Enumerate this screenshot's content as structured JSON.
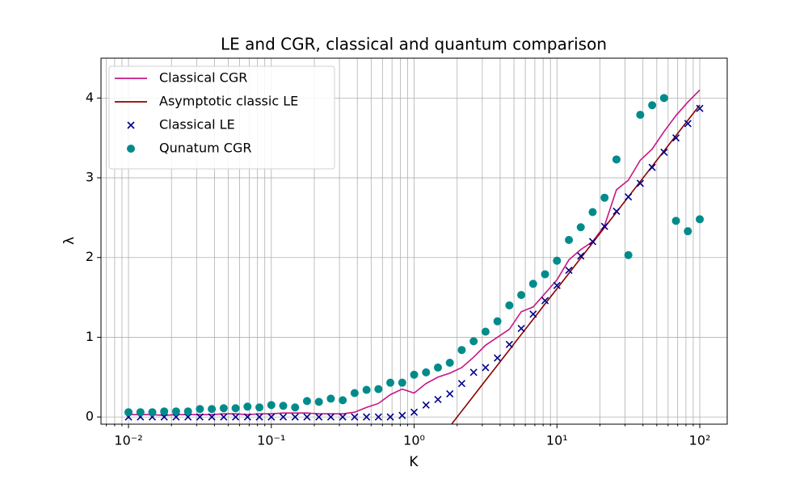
{
  "chart_data": {
    "type": "line",
    "title": "LE and CGR, classical and quantum comparison",
    "x_label": "K",
    "y_label": "λ",
    "x_scale": "log",
    "grid": true,
    "legend_position": "upper left",
    "xlim": [
      0.00642,
      155.6
    ],
    "ylim": [
      -0.09,
      4.5
    ],
    "xticks": [
      {
        "value": 0.01,
        "label": "10⁻²"
      },
      {
        "value": 0.1,
        "label": "10⁻¹"
      },
      {
        "value": 1,
        "label": "10⁰"
      },
      {
        "value": 10,
        "label": "10¹"
      },
      {
        "value": 100,
        "label": "10²"
      }
    ],
    "xminorticks": [
      0.007,
      0.008,
      0.009,
      0.02,
      0.03,
      0.04,
      0.05,
      0.06,
      0.07,
      0.08,
      0.09,
      0.2,
      0.3,
      0.4,
      0.5,
      0.6,
      0.7,
      0.8,
      0.9,
      2,
      3,
      4,
      5,
      6,
      7,
      8,
      9,
      20,
      30,
      40,
      50,
      60,
      70,
      80,
      90
    ],
    "yticks": [
      0,
      1,
      2,
      3,
      4
    ],
    "x": [
      0.01,
      0.01212,
      0.01468,
      0.01778,
      0.02154,
      0.0261,
      0.03162,
      0.03831,
      0.04642,
      0.05623,
      0.06813,
      0.08254,
      0.1,
      0.1212,
      0.1468,
      0.1778,
      0.2154,
      0.261,
      0.3162,
      0.3831,
      0.4642,
      0.5623,
      0.6813,
      0.8254,
      1,
      1.212,
      1.468,
      1.778,
      2.154,
      2.61,
      3.162,
      3.831,
      4.642,
      5.623,
      6.813,
      8.254,
      10,
      12.12,
      14.68,
      17.78,
      21.54,
      26.1,
      31.62,
      38.31,
      46.42,
      56.23,
      68.13,
      82.54,
      100
    ],
    "series": [
      {
        "name": "Classical CGR",
        "kind": "line",
        "color": "#c71585",
        "values": [
          0.03,
          0.03,
          0.03,
          0.02,
          0.03,
          0.03,
          0.03,
          0.03,
          0.04,
          0.04,
          0.03,
          0.04,
          0.04,
          0.05,
          0.05,
          0.05,
          0.04,
          0.04,
          0.04,
          0.06,
          0.12,
          0.17,
          0.28,
          0.35,
          0.3,
          0.42,
          0.5,
          0.55,
          0.62,
          0.75,
          0.9,
          1.0,
          1.1,
          1.32,
          1.38,
          1.55,
          1.72,
          1.97,
          2.1,
          2.2,
          2.4,
          2.85,
          2.97,
          3.22,
          3.36,
          3.58,
          3.78,
          3.95,
          4.1
        ]
      },
      {
        "name": "Asymptotic classic LE",
        "kind": "line",
        "color": "#8b0000",
        "values": [
          null,
          null,
          null,
          null,
          null,
          null,
          null,
          null,
          null,
          null,
          null,
          null,
          null,
          null,
          null,
          null,
          null,
          null,
          null,
          null,
          null,
          null,
          null,
          null,
          null,
          null,
          -0.309,
          -0.118,
          0.074,
          0.266,
          0.458,
          0.65,
          0.842,
          1.034,
          1.226,
          1.418,
          1.609,
          1.801,
          1.993,
          2.185,
          2.377,
          2.569,
          2.761,
          2.953,
          3.145,
          3.337,
          3.529,
          3.721,
          3.912
        ]
      },
      {
        "name": "Classical LE",
        "kind": "x",
        "color": "#00008b",
        "values": [
          0,
          0,
          0,
          0,
          0,
          0,
          0,
          0,
          0,
          0,
          0,
          0,
          0,
          0,
          0,
          0,
          0,
          0,
          0,
          0,
          0,
          0,
          0,
          0.02,
          0.06,
          0.15,
          0.22,
          0.29,
          0.42,
          0.56,
          0.62,
          0.74,
          0.91,
          1.11,
          1.29,
          1.46,
          1.65,
          1.84,
          2.02,
          2.2,
          2.39,
          2.58,
          2.76,
          2.93,
          3.13,
          3.32,
          3.5,
          3.68,
          3.87
        ]
      },
      {
        "name": "Qunatum CGR",
        "kind": "o",
        "color": "#008b8b",
        "values": [
          0.06,
          0.06,
          0.06,
          0.07,
          0.07,
          0.07,
          0.1,
          0.1,
          0.11,
          0.11,
          0.13,
          0.12,
          0.15,
          0.14,
          0.12,
          0.2,
          0.19,
          0.23,
          0.21,
          0.3,
          0.34,
          0.35,
          0.43,
          0.43,
          0.53,
          0.56,
          0.62,
          0.68,
          0.84,
          0.95,
          1.07,
          1.2,
          1.4,
          1.53,
          1.67,
          1.79,
          1.96,
          2.22,
          2.38,
          2.57,
          2.75,
          3.23,
          2.03,
          3.79,
          3.91,
          4.0,
          2.46,
          2.33,
          2.48
        ]
      }
    ]
  }
}
